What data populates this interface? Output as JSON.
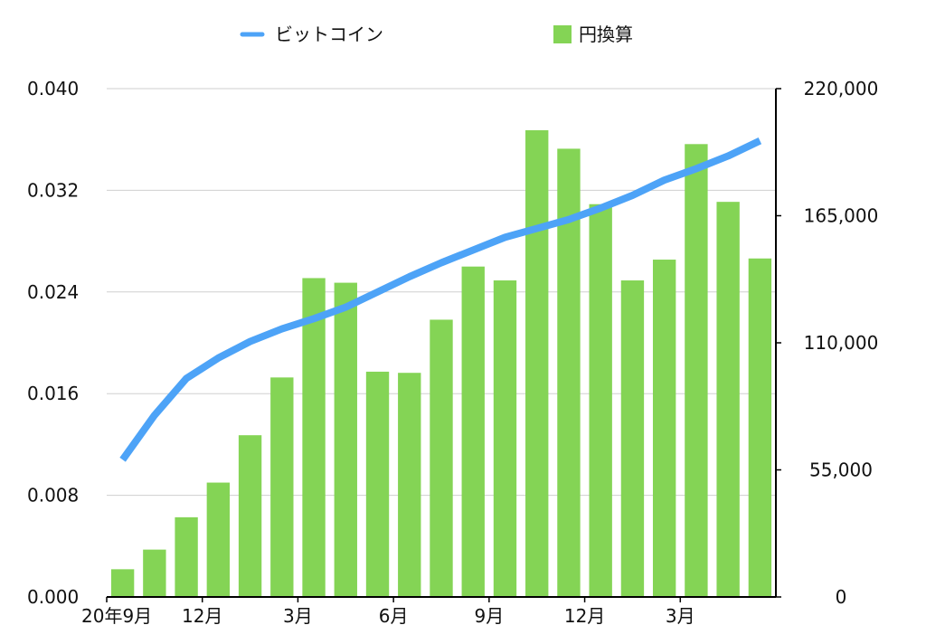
{
  "chart_data": {
    "type": "bar",
    "title": "",
    "xlabel": "",
    "ylabel": "",
    "categories": [
      "20年9月",
      "",
      "",
      "12月",
      "",
      "",
      "3月",
      "",
      "",
      "6月",
      "",
      "",
      "9月",
      "",
      "",
      "12月",
      "",
      "",
      "3月",
      "",
      ""
    ],
    "x_tick_labels": [
      "20年9月",
      "12月",
      "3月",
      "6月",
      "9月",
      "12月",
      "3月"
    ],
    "x_tick_indices": [
      0,
      3,
      6,
      9,
      12,
      15,
      18
    ],
    "y_left": {
      "ticks": [
        0,
        0.008,
        0.016,
        0.024,
        0.032,
        0.04
      ],
      "tick_labels": [
        "0.000",
        "0.008",
        "0.016",
        "0.024",
        "0.032",
        "0.040"
      ],
      "ylim": [
        0,
        0.04
      ]
    },
    "y_right": {
      "ticks": [
        0,
        55000,
        110000,
        165000,
        220000
      ],
      "tick_labels": [
        "0",
        "55,000",
        "110,000",
        "165,000",
        "220,000"
      ],
      "ylim": [
        0,
        220000
      ]
    },
    "grid": true,
    "legend_position": "top",
    "series": [
      {
        "name": "ビットコイン",
        "type": "line",
        "axis": "left",
        "color": "#4DA3F7",
        "values": [
          0.0108,
          0.0143,
          0.0172,
          0.0188,
          0.0201,
          0.0211,
          0.0219,
          0.0228,
          0.024,
          0.0252,
          0.0263,
          0.0273,
          0.0283,
          0.029,
          0.0297,
          0.0306,
          0.0316,
          0.0328,
          0.0337,
          0.0347,
          0.0359
        ]
      },
      {
        "name": "円換算",
        "type": "bar",
        "axis": "right",
        "color": "#84D455",
        "values": [
          12000,
          20500,
          34500,
          49500,
          70000,
          95000,
          138000,
          136000,
          97500,
          97000,
          120000,
          143000,
          137000,
          202000,
          194000,
          170000,
          137000,
          146000,
          196000,
          171000,
          146500
        ]
      }
    ]
  }
}
